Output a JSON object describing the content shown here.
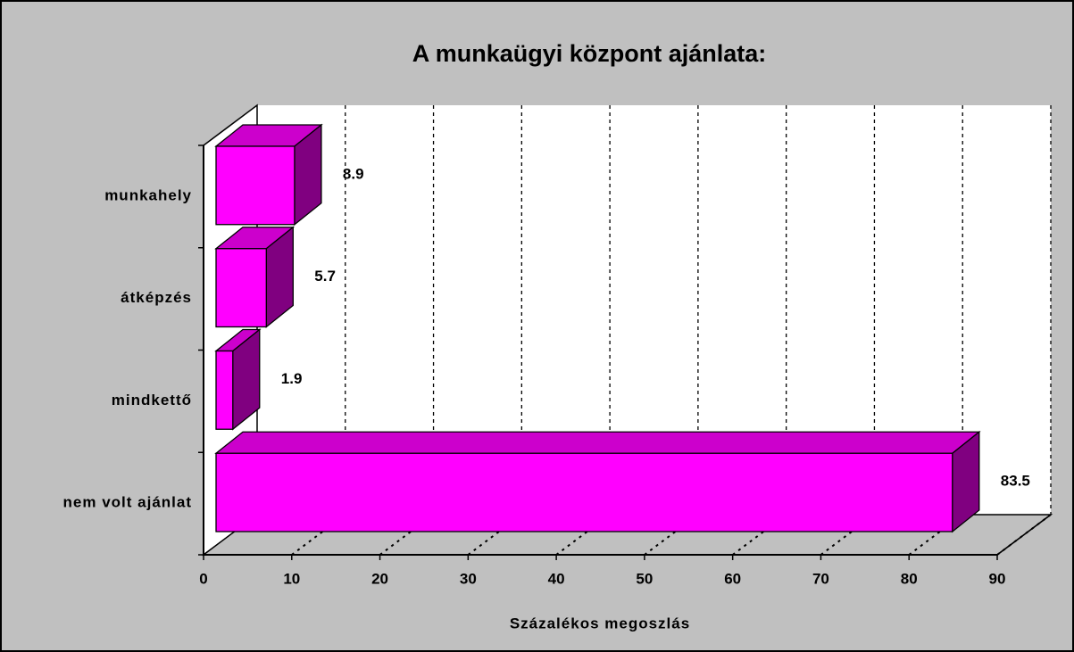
{
  "chart_data": {
    "type": "bar3d_horizontal",
    "title": "A munkaügyi központ ajánlata:",
    "categories": [
      "munkahely",
      "átképzés",
      "mindkettő",
      "nem volt ajánlat"
    ],
    "values": [
      8.9,
      5.7,
      1.9,
      83.5
    ],
    "color": "#ff00ff",
    "xlabel": "Százalékos megoszlás",
    "xlim": [
      0,
      90
    ],
    "xticks": [
      0,
      10,
      20,
      30,
      40,
      50,
      60,
      70,
      80,
      90
    ],
    "grid": true
  }
}
